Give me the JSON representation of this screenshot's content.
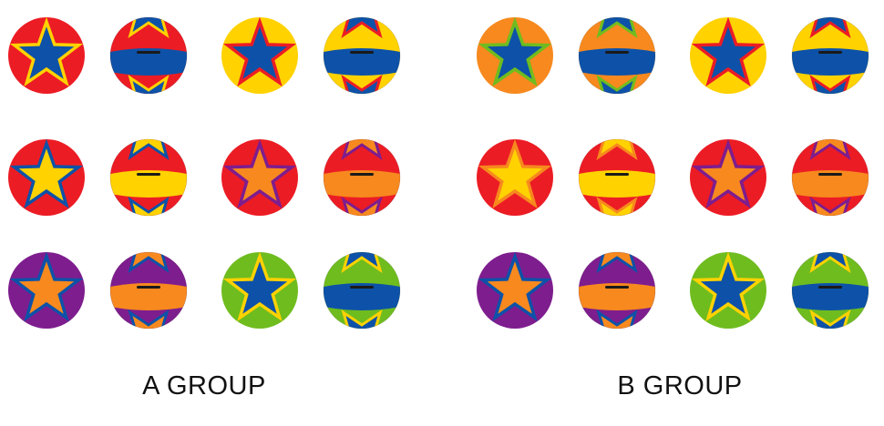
{
  "colors": {
    "red": "#ec1c24",
    "yellow": "#ffd200",
    "blue": "#0d52a8",
    "orange": "#f7891e",
    "purple": "#7e1d8e",
    "green": "#6fbc1f"
  },
  "groups": [
    {
      "label": "A GROUP",
      "items": [
        {
          "bg": "red",
          "star": "blue",
          "outline": "yellow",
          "band": "blue"
        },
        {
          "bg": "yellow",
          "star": "blue",
          "outline": "red",
          "band": "blue"
        },
        {
          "bg": "red",
          "star": "yellow",
          "outline": "blue",
          "band": "yellow"
        },
        {
          "bg": "red",
          "star": "orange",
          "outline": "purple",
          "band": "orange"
        },
        {
          "bg": "purple",
          "star": "orange",
          "outline": "blue",
          "band": "orange"
        },
        {
          "bg": "green",
          "star": "blue",
          "outline": "yellow",
          "band": "blue"
        }
      ]
    },
    {
      "label": "B GROUP",
      "items": [
        {
          "bg": "orange",
          "star": "blue",
          "outline": "green",
          "band": "blue"
        },
        {
          "bg": "yellow",
          "star": "blue",
          "outline": "red",
          "band": "blue"
        },
        {
          "bg": "red",
          "star": "yellow",
          "outline": "orange",
          "band": "yellow"
        },
        {
          "bg": "red",
          "star": "orange",
          "outline": "purple",
          "band": "orange"
        },
        {
          "bg": "purple",
          "star": "orange",
          "outline": "blue",
          "band": "orange"
        },
        {
          "bg": "green",
          "star": "blue",
          "outline": "yellow",
          "band": "blue"
        }
      ]
    }
  ]
}
